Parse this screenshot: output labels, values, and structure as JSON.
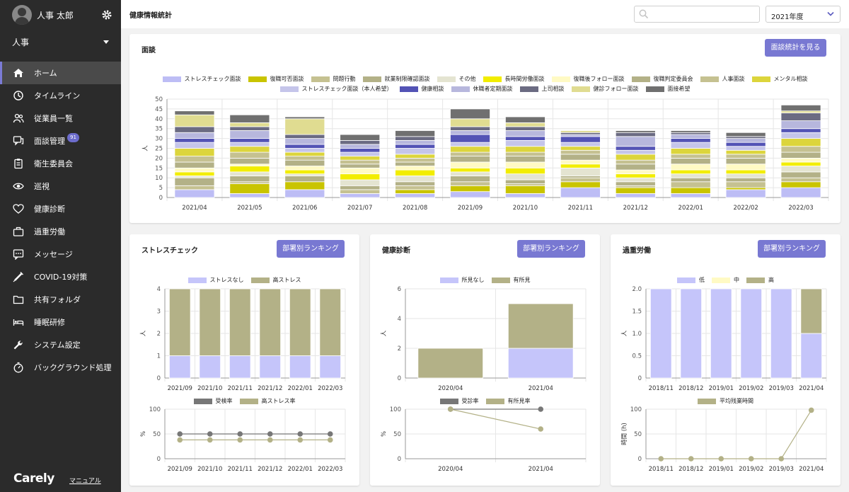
{
  "user": {
    "name": "人事 太郎",
    "role": "人事"
  },
  "nav": [
    {
      "label": "ホーム",
      "icon": "home-icon",
      "active": true
    },
    {
      "label": "タイムライン",
      "icon": "clock-icon"
    },
    {
      "label": "従業員一覧",
      "icon": "users-icon"
    },
    {
      "label": "面談管理",
      "icon": "chat-icon",
      "badge": "91"
    },
    {
      "label": "衛生委員会",
      "icon": "clipboard-icon"
    },
    {
      "label": "巡視",
      "icon": "eye-icon"
    },
    {
      "label": "健康診断",
      "icon": "heart-icon"
    },
    {
      "label": "過重労働",
      "icon": "briefcase-icon"
    },
    {
      "label": "メッセージ",
      "icon": "message-icon"
    },
    {
      "label": "COVID-19対策",
      "icon": "syringe-icon"
    },
    {
      "label": "共有フォルダ",
      "icon": "folder-icon"
    },
    {
      "label": "睡眠研修",
      "icon": "bed-icon"
    },
    {
      "label": "システム設定",
      "icon": "wrench-icon"
    },
    {
      "label": "バックグラウンド処理",
      "icon": "timer-icon"
    }
  ],
  "brand": "Carely",
  "manual_link": "マニュアル",
  "page_title": "健康情報統計",
  "search": {
    "placeholder": ""
  },
  "year_select": "2021年度",
  "colors": {
    "accent": "#7878d2",
    "sidebar": "#2b2b2b"
  },
  "interview": {
    "title": "面談",
    "button": "面談統計を見る",
    "chart_data": {
      "type": "bar",
      "stacked": true,
      "categories": [
        "2021/04",
        "2021/05",
        "2021/06",
        "2021/07",
        "2021/08",
        "2021/09",
        "2021/10",
        "2021/11",
        "2021/12",
        "2022/01",
        "2022/02",
        "2022/03"
      ],
      "ylabel": "人",
      "ylim": [
        0,
        50
      ],
      "yticks": [
        0,
        5,
        10,
        15,
        20,
        25,
        30,
        35,
        40,
        45,
        50
      ],
      "series": [
        {
          "name": "ストレスチェック面談",
          "color": "#bdbdf5",
          "values": [
            4,
            2,
            4,
            2,
            2,
            3,
            2,
            5,
            2,
            2,
            4,
            5
          ]
        },
        {
          "name": "復職可否面談",
          "color": "#c9c400",
          "values": [
            0,
            5,
            4,
            0,
            2,
            3,
            4,
            3,
            3,
            3,
            1,
            3
          ]
        },
        {
          "name": "問題行動",
          "color": "#c5c191",
          "values": [
            2,
            1,
            0,
            2,
            2,
            2,
            1,
            2,
            1,
            3,
            3,
            2
          ]
        },
        {
          "name": "就業制限確認面談",
          "color": "#b3b187",
          "values": [
            4,
            3,
            3,
            2,
            2,
            3,
            2,
            1,
            2,
            2,
            2,
            3
          ]
        },
        {
          "name": "その他",
          "color": "#e4e4d1",
          "values": [
            1,
            2,
            1,
            3,
            3,
            2,
            3,
            4,
            2,
            2,
            2,
            3
          ]
        },
        {
          "name": "長時間労働面談",
          "color": "#f2ed00",
          "values": [
            2,
            3,
            2,
            3,
            3,
            2,
            3,
            2,
            2,
            2,
            2,
            2
          ]
        },
        {
          "name": "復職後フォロー面談",
          "color": "#fffac4",
          "values": [
            2,
            1,
            2,
            3,
            2,
            3,
            3,
            2,
            2,
            3,
            3,
            2
          ]
        },
        {
          "name": "復職判定委員会",
          "color": "#b3b187",
          "values": [
            3,
            3,
            3,
            2,
            2,
            3,
            3,
            3,
            3,
            3,
            3,
            3
          ]
        },
        {
          "name": "人事面談",
          "color": "#c5c191",
          "values": [
            3,
            3,
            2,
            2,
            2,
            2,
            2,
            2,
            2,
            2,
            2,
            3
          ]
        },
        {
          "name": "メンタル相談",
          "color": "#dcd53c",
          "values": [
            4,
            3,
            2,
            2,
            2,
            3,
            3,
            2,
            3,
            3,
            2,
            4
          ]
        },
        {
          "name": "ストレスチェック面談（本人希望）",
          "color": "#c5c5ea",
          "values": [
            3,
            2,
            2,
            2,
            3,
            2,
            3,
            2,
            2,
            3,
            2,
            3
          ]
        },
        {
          "name": "健康相談",
          "color": "#5353b5",
          "values": [
            2,
            2,
            2,
            2,
            2,
            4,
            2,
            3,
            2,
            2,
            2,
            2
          ]
        },
        {
          "name": "休職者定期面談",
          "color": "#b7b7dd",
          "values": [
            3,
            4,
            3,
            2,
            2,
            2,
            3,
            1,
            5,
            2,
            2,
            4
          ]
        },
        {
          "name": "上司相談",
          "color": "#6b6b82",
          "values": [
            3,
            2,
            2,
            2,
            2,
            2,
            2,
            1,
            2,
            1,
            1,
            4
          ]
        },
        {
          "name": "健診フォロー面談",
          "color": "#e0dc91",
          "values": [
            6,
            2,
            8,
            0,
            0,
            4,
            2,
            1,
            0,
            0,
            0,
            1
          ]
        },
        {
          "name": "面接希望",
          "color": "#707070",
          "values": [
            2,
            4,
            1,
            3,
            3,
            5,
            3,
            0,
            1,
            1,
            2,
            3
          ]
        }
      ]
    }
  },
  "stress": {
    "title": "ストレスチェック",
    "button": "部署別ランキング",
    "chart_data": {
      "type": "bar",
      "stacked": true,
      "categories": [
        "2021/09",
        "2021/10",
        "2021/11",
        "2021/12",
        "2022/01",
        "2022/03"
      ],
      "ylabel": "人",
      "ylim": [
        0,
        4
      ],
      "yticks": [
        0,
        1,
        2,
        3,
        4
      ],
      "series": [
        {
          "name": "ストレスなし",
          "color": "#c5c5fa",
          "values": [
            1,
            1,
            1,
            1,
            1,
            1
          ]
        },
        {
          "name": "高ストレス",
          "color": "#b3b187",
          "values": [
            3,
            3,
            3,
            3,
            3,
            3
          ]
        }
      ]
    },
    "line_data": {
      "type": "line",
      "categories": [
        "2021/09",
        "2021/10",
        "2021/11",
        "2021/12",
        "2022/01",
        "2022/03"
      ],
      "ylabel": "%",
      "ylim": [
        0,
        100
      ],
      "yticks": [
        0,
        50,
        100
      ],
      "series": [
        {
          "name": "受検率",
          "color": "#777777",
          "values": [
            50,
            50,
            50,
            50,
            50,
            50
          ]
        },
        {
          "name": "高ストレス率",
          "color": "#b3b187",
          "values": [
            38,
            38,
            38,
            38,
            38,
            38
          ]
        }
      ]
    }
  },
  "checkup": {
    "title": "健康診断",
    "button": "部署別ランキング",
    "chart_data": {
      "type": "bar",
      "stacked": true,
      "categories": [
        "2020/04",
        "2021/04"
      ],
      "ylabel": "人",
      "ylim": [
        0,
        6
      ],
      "yticks": [
        0,
        2,
        4,
        6
      ],
      "series": [
        {
          "name": "所見なし",
          "color": "#c5c5fa",
          "values": [
            0,
            2
          ]
        },
        {
          "name": "有所見",
          "color": "#b3b187",
          "values": [
            2,
            3
          ]
        }
      ]
    },
    "line_data": {
      "type": "line",
      "categories": [
        "2020/04",
        "2021/04"
      ],
      "ylabel": "%",
      "ylim": [
        0,
        100
      ],
      "yticks": [
        0,
        50,
        100
      ],
      "series": [
        {
          "name": "受診率",
          "color": "#777777",
          "values": [
            100,
            100
          ]
        },
        {
          "name": "有所見率",
          "color": "#b3b187",
          "values": [
            100,
            60
          ]
        }
      ]
    }
  },
  "overwork": {
    "title": "過重労働",
    "button": "部署別ランキング",
    "chart_data": {
      "type": "bar",
      "stacked": true,
      "categories": [
        "2018/11",
        "2018/12",
        "2019/01",
        "2019/02",
        "2019/03",
        "2021/04"
      ],
      "ylabel": "人",
      "ylim": [
        0,
        2
      ],
      "yticks": [
        0,
        0.5,
        1,
        1.5,
        2
      ],
      "ytick_labels": [
        "0",
        "0.5",
        "1.0",
        "1.5",
        "2.0"
      ],
      "series": [
        {
          "name": "低",
          "color": "#c5c5fa",
          "values": [
            2,
            2,
            2,
            2,
            2,
            1
          ]
        },
        {
          "name": "中",
          "color": "#fffac4",
          "values": [
            0,
            0,
            0,
            0,
            0,
            0
          ]
        },
        {
          "name": "高",
          "color": "#b3b187",
          "values": [
            0,
            0,
            0,
            0,
            0,
            1
          ]
        }
      ]
    },
    "line_data": {
      "type": "line",
      "categories": [
        "2018/11",
        "2018/12",
        "2019/01",
        "2019/02",
        "2019/03",
        "2021/04"
      ],
      "ylabel": "時間 (h)",
      "ylim": [
        0,
        100
      ],
      "yticks": [
        0,
        50,
        100
      ],
      "series": [
        {
          "name": "平均残業時間",
          "color": "#b3b187",
          "values": [
            0,
            0,
            0,
            0,
            0,
            98
          ]
        }
      ]
    }
  }
}
